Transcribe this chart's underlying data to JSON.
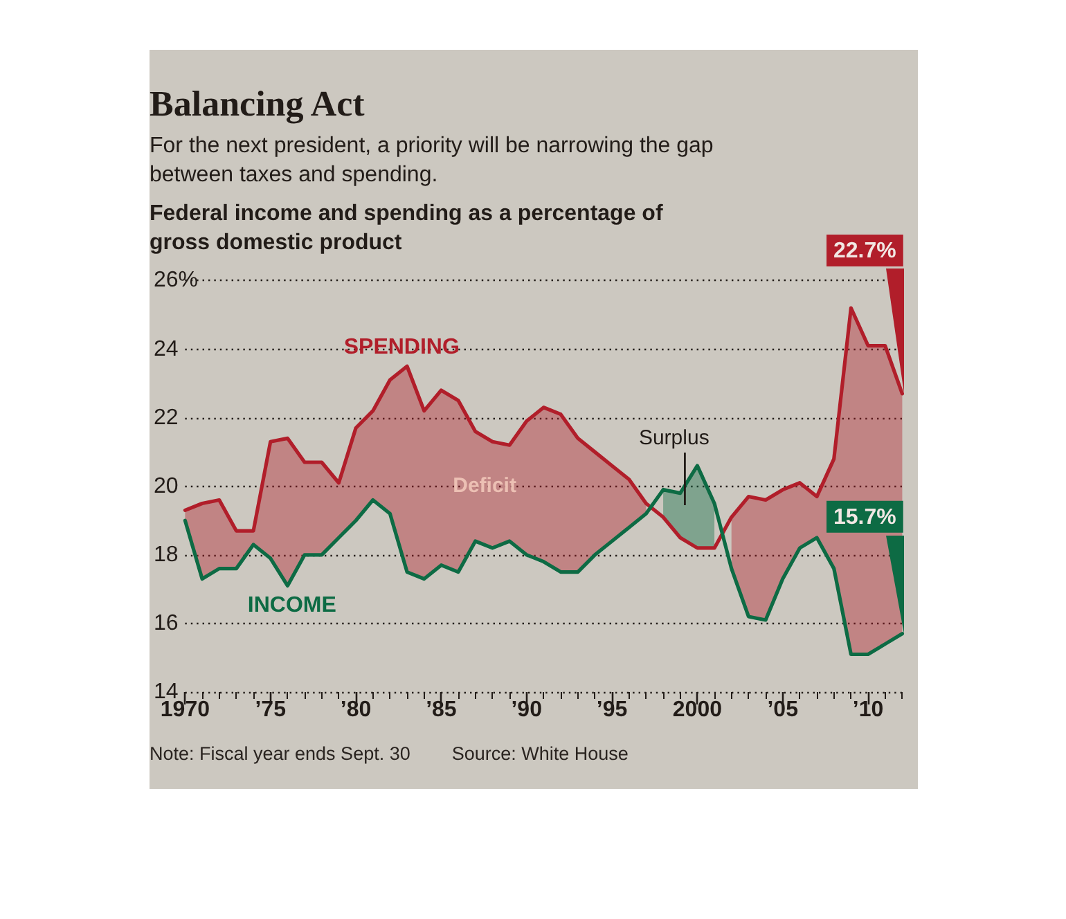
{
  "chart_data": {
    "type": "line",
    "title": "Balancing Act",
    "subtitle": "For the next president, a priority will be narrowing the gap between taxes and spending.",
    "ylabel": "Federal income and spending as a percentage of gross domestic product",
    "x": [
      1970,
      1971,
      1972,
      1973,
      1974,
      1975,
      1976,
      1977,
      1978,
      1979,
      1980,
      1981,
      1982,
      1983,
      1984,
      1985,
      1986,
      1987,
      1988,
      1989,
      1990,
      1991,
      1992,
      1993,
      1994,
      1995,
      1996,
      1997,
      1998,
      1999,
      2000,
      2001,
      2002,
      2003,
      2004,
      2005,
      2006,
      2007,
      2008,
      2009,
      2010,
      2011,
      2012
    ],
    "series": [
      {
        "name": "SPENDING",
        "color": "#b11e2a",
        "values": [
          19.3,
          19.5,
          19.6,
          18.7,
          18.7,
          21.3,
          21.4,
          20.7,
          20.7,
          20.1,
          21.7,
          22.2,
          23.1,
          23.5,
          22.2,
          22.8,
          22.5,
          21.6,
          21.3,
          21.2,
          21.9,
          22.3,
          22.1,
          21.4,
          21.0,
          20.6,
          20.2,
          19.5,
          19.1,
          18.5,
          18.2,
          18.2,
          19.1,
          19.7,
          19.6,
          19.9,
          20.1,
          19.7,
          20.8,
          25.2,
          24.1,
          24.1,
          22.7
        ],
        "upper": [
          19.3,
          19.5,
          19.6,
          18.7,
          18.7,
          21.3,
          21.4,
          20.7,
          20.7,
          20.1,
          21.7,
          22.2,
          23.1,
          23.5,
          22.2,
          22.8,
          22.5,
          21.6,
          21.3,
          21.2,
          21.9,
          22.3,
          22.1,
          21.4,
          21.0,
          20.6,
          20.2,
          19.5,
          null,
          null,
          null,
          null,
          19.1,
          19.7,
          19.6,
          19.9,
          20.1,
          19.7,
          20.8,
          25.2,
          24.1,
          24.1,
          22.7
        ],
        "lower": [
          19.0,
          17.3,
          17.6,
          17.6,
          18.3,
          17.9,
          17.1,
          18.0,
          18.0,
          18.5,
          19.0,
          19.6,
          19.2,
          17.5,
          17.3,
          17.7,
          17.5,
          18.4,
          18.2,
          18.4,
          18.0,
          17.8,
          17.5,
          17.5,
          18.0,
          18.4,
          18.8,
          19.2,
          null,
          null,
          null,
          null,
          17.6,
          16.2,
          16.1,
          17.3,
          18.2,
          18.5,
          17.6,
          15.1,
          15.1,
          15.4,
          15.7
        ],
        "value_labels": [
          null,
          null,
          null,
          null,
          null,
          null,
          null,
          null,
          null,
          null,
          null,
          null,
          null,
          null,
          null,
          null,
          null,
          null,
          null,
          null,
          null,
          null,
          null,
          null,
          null,
          null,
          null,
          null,
          null,
          null,
          null,
          null,
          null,
          null,
          null,
          null,
          null,
          null,
          null,
          null,
          null,
          null,
          "22.7%"
        ]
      },
      {
        "name": "INCOME",
        "color": "#0d6b44",
        "values": [
          19.0,
          17.3,
          17.6,
          17.6,
          18.3,
          17.9,
          17.1,
          18.0,
          18.0,
          18.5,
          19.0,
          19.6,
          19.2,
          17.5,
          17.3,
          17.7,
          17.5,
          18.4,
          18.2,
          18.4,
          18.0,
          17.8,
          17.5,
          17.5,
          18.0,
          18.4,
          18.8,
          19.2,
          19.9,
          19.8,
          20.6,
          19.5,
          17.6,
          16.2,
          16.1,
          17.3,
          18.2,
          18.5,
          17.6,
          15.1,
          15.1,
          15.4,
          15.7
        ],
        "upper": [
          null,
          null,
          null,
          null,
          null,
          null,
          null,
          null,
          null,
          null,
          null,
          null,
          null,
          null,
          null,
          null,
          null,
          null,
          null,
          null,
          null,
          null,
          null,
          null,
          null,
          null,
          null,
          null,
          19.9,
          19.8,
          20.6,
          19.5,
          null,
          null,
          null,
          null,
          null,
          null,
          null,
          null,
          null,
          null,
          null
        ],
        "lower": [
          null,
          null,
          null,
          null,
          null,
          null,
          null,
          null,
          null,
          null,
          null,
          null,
          null,
          null,
          null,
          null,
          null,
          null,
          null,
          null,
          null,
          null,
          null,
          null,
          null,
          null,
          null,
          null,
          19.1,
          18.5,
          18.2,
          18.2,
          null,
          null,
          null,
          null,
          null,
          null,
          null,
          null,
          null,
          null,
          null
        ],
        "value_labels": [
          null,
          null,
          null,
          null,
          null,
          null,
          null,
          null,
          null,
          null,
          null,
          null,
          null,
          null,
          null,
          null,
          null,
          null,
          null,
          null,
          null,
          null,
          null,
          null,
          null,
          null,
          null,
          null,
          null,
          null,
          null,
          null,
          null,
          null,
          null,
          null,
          null,
          null,
          null,
          null,
          null,
          null,
          "15.7%"
        ]
      }
    ],
    "xlim": [
      1970,
      2012
    ],
    "xticks": [
      1970,
      {
        "value": 1971,
        "label": null
      },
      {
        "value": 1972,
        "label": null
      },
      {
        "value": 1973,
        "label": null
      },
      {
        "value": 1974,
        "label": null
      },
      {
        "value": 1975,
        "label": "’75"
      },
      {
        "value": 1976,
        "label": null
      },
      {
        "value": 1977,
        "label": null
      },
      {
        "value": 1978,
        "label": null
      },
      {
        "value": 1979,
        "label": null
      },
      {
        "value": 1980,
        "label": "’80"
      },
      {
        "value": 1981,
        "label": null
      },
      {
        "value": 1982,
        "label": null
      },
      {
        "value": 1983,
        "label": null
      },
      {
        "value": 1984,
        "label": null
      },
      {
        "value": 1985,
        "label": "’85"
      },
      {
        "value": 1986,
        "label": null
      },
      {
        "value": 1987,
        "label": null
      },
      {
        "value": 1988,
        "label": null
      },
      {
        "value": 1989,
        "label": null
      },
      {
        "value": 1990,
        "label": "’90"
      },
      {
        "value": 1991,
        "label": null
      },
      {
        "value": 1992,
        "label": null
      },
      {
        "value": 1993,
        "label": null
      },
      {
        "value": 1994,
        "label": null
      },
      {
        "value": 1995,
        "label": "’95"
      },
      {
        "value": 1996,
        "label": null
      },
      {
        "value": 1997,
        "label": null
      },
      {
        "value": 1998,
        "label": null
      },
      {
        "value": 1999,
        "label": null
      },
      2000,
      {
        "value": 2001,
        "label": null
      },
      {
        "value": 2002,
        "label": null
      },
      {
        "value": 2003,
        "label": null
      },
      {
        "value": 2004,
        "label": null
      },
      {
        "value": 2005,
        "label": "’05"
      },
      {
        "value": 2006,
        "label": null
      },
      {
        "value": 2007,
        "label": null
      },
      {
        "value": 2008,
        "label": null
      },
      {
        "value": 2009,
        "label": null
      },
      {
        "value": 2010,
        "label": "’10"
      },
      {
        "value": 2011,
        "label": null
      },
      {
        "value": 2012,
        "label": null
      }
    ],
    "ylim": [
      14,
      26
    ],
    "yticks": [
      14,
      16,
      18,
      20,
      22,
      24,
      {
        "value": 26,
        "label": "26%"
      }
    ],
    "grid": "y",
    "marker": "none",
    "annotations": [
      "Deficit",
      "Surplus",
      "Note: Fiscal year ends Sept. 30",
      "Source: White House"
    ]
  }
}
